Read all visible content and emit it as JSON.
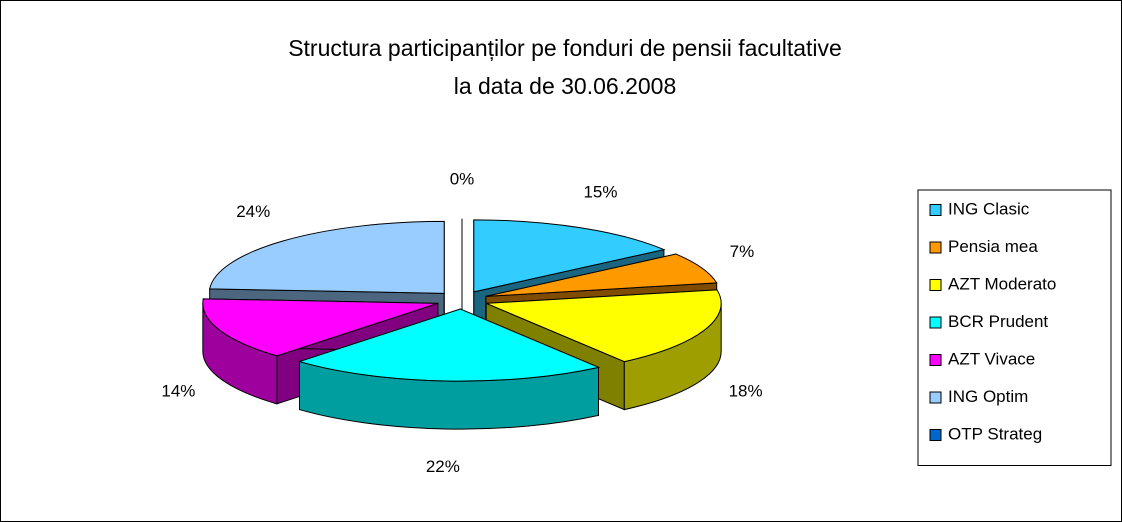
{
  "chart_data": {
    "type": "pie3d",
    "title": [
      "Structura participanților pe fonduri de pensii facultative",
      "la data de 30.06.2008"
    ],
    "categories": [
      "ING Clasic",
      "Pensia mea",
      "AZT Moderato",
      "BCR Prudent",
      "AZT Vivace",
      "ING Optim",
      "OTP Strateg"
    ],
    "values": [
      15,
      7,
      18,
      22,
      14,
      24,
      0
    ],
    "value_labels": [
      "15%",
      "7%",
      "18%",
      "22%",
      "14%",
      "24%",
      "0%"
    ],
    "colors": [
      "#33ccff",
      "#ff9900",
      "#ffff00",
      "#00ffff",
      "#ff00ff",
      "#99ccff",
      "#0066cc"
    ],
    "legend": "right"
  }
}
